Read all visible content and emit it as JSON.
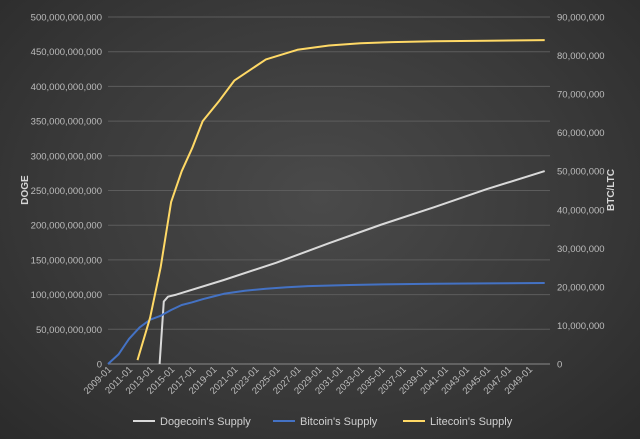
{
  "chart_data": {
    "type": "line",
    "title": "",
    "xlabel": "",
    "ylabel_left": "DOGE",
    "ylabel_right": "BTC/LTC",
    "ylim_left": [
      0,
      500000000000
    ],
    "ylim_right": [
      0,
      90000000
    ],
    "grid": true,
    "legend_position": "bottom",
    "x_tick_labels": [
      "2009-01",
      "2011-01",
      "2013-01",
      "2015-01",
      "2017-01",
      "2019-01",
      "2021-01",
      "2023-01",
      "2025-01",
      "2027-01",
      "2029-01",
      "2031-01",
      "2033-01",
      "2035-01",
      "2037-01",
      "2039-01",
      "2041-01",
      "2043-01",
      "2045-01",
      "2047-01",
      "2049-01"
    ],
    "y_left_tick_labels": [
      "0",
      "50,000,000,000",
      "100,000,000,000",
      "150,000,000,000",
      "200,000,000,000",
      "250,000,000,000",
      "300,000,000,000",
      "350,000,000,000",
      "400,000,000,000",
      "450,000,000,000",
      "500,000,000,000"
    ],
    "y_right_tick_labels": [
      "0",
      "10,000,000",
      "20,000,000",
      "30,000,000",
      "40,000,000",
      "50,000,000",
      "60,000,000",
      "70,000,000",
      "80,000,000",
      "90,000,000"
    ],
    "series": [
      {
        "name": "Dogecoin's Supply",
        "axis": "left",
        "color": "#d9d9d9",
        "points": [
          [
            2013.9,
            0
          ],
          [
            2014.3,
            90000000000
          ],
          [
            2014.7,
            97000000000
          ],
          [
            2015.5,
            100000000000
          ],
          [
            2020,
            121000000000
          ],
          [
            2025,
            146000000000
          ],
          [
            2030,
            174000000000
          ],
          [
            2035,
            201000000000
          ],
          [
            2040,
            226000000000
          ],
          [
            2045,
            252000000000
          ],
          [
            2050.5,
            278000000000
          ]
        ]
      },
      {
        "name": "Bitcoin's Supply",
        "axis": "right",
        "color": "#4472c4",
        "points": [
          [
            2009,
            0
          ],
          [
            2010,
            2500000
          ],
          [
            2011,
            6500000
          ],
          [
            2012,
            9500000
          ],
          [
            2013,
            11500000
          ],
          [
            2014,
            12500000
          ],
          [
            2015,
            14000000
          ],
          [
            2016,
            15300000
          ],
          [
            2017,
            16000000
          ],
          [
            2018,
            16800000
          ],
          [
            2019,
            17500000
          ],
          [
            2020,
            18200000
          ],
          [
            2022,
            19000000
          ],
          [
            2024,
            19500000
          ],
          [
            2026,
            19900000
          ],
          [
            2028,
            20200000
          ],
          [
            2032,
            20500000
          ],
          [
            2036,
            20700000
          ],
          [
            2040,
            20800000
          ],
          [
            2045,
            20900000
          ],
          [
            2050.5,
            21000000
          ]
        ]
      },
      {
        "name": "Litecoin's Supply",
        "axis": "right",
        "color": "#ffd966",
        "points": [
          [
            2011.8,
            1000000
          ],
          [
            2013,
            12000000
          ],
          [
            2014,
            25000000
          ],
          [
            2015,
            42000000
          ],
          [
            2016,
            50000000
          ],
          [
            2017,
            56000000
          ],
          [
            2018,
            63000000
          ],
          [
            2019.5,
            68000000
          ],
          [
            2021,
            73500000
          ],
          [
            2024,
            79000000
          ],
          [
            2027,
            81500000
          ],
          [
            2030,
            82600000
          ],
          [
            2033,
            83200000
          ],
          [
            2036,
            83500000
          ],
          [
            2040,
            83700000
          ],
          [
            2045,
            83850000
          ],
          [
            2050.5,
            84000000
          ]
        ]
      }
    ]
  }
}
